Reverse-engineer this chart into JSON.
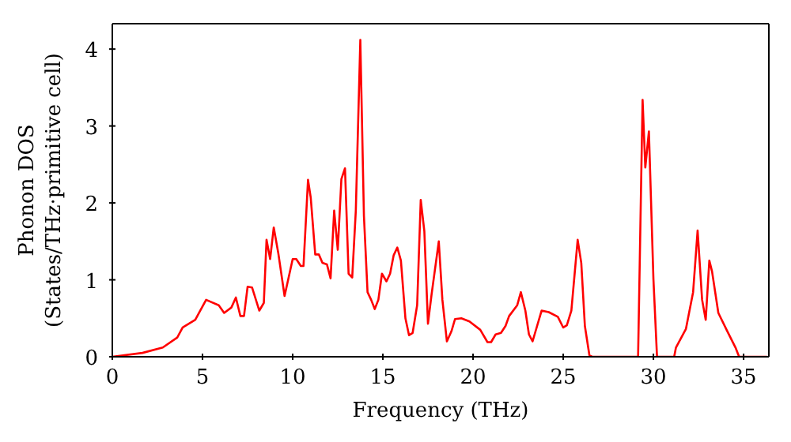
{
  "chart_data": {
    "type": "line",
    "xlabel": "Frequency (THz)",
    "ylabel": "Phonon DOS\n(States/THz·primitive cell)",
    "xlim": [
      0,
      36.4
    ],
    "ylim": [
      0,
      4.33
    ],
    "xticks": [
      0,
      5,
      10,
      15,
      20,
      25,
      30,
      35
    ],
    "yticks": [
      0,
      1,
      2,
      3,
      4
    ],
    "marker": "none",
    "line_style": "solid",
    "series": [
      {
        "color": "#ff0000",
        "x": [
          0,
          1.67,
          2.8,
          3.6,
          3.9,
          4.6,
          5.2,
          5.9,
          6.2,
          6.6,
          6.85,
          7.1,
          7.3,
          7.5,
          7.75,
          8.15,
          8.4,
          8.55,
          8.75,
          8.95,
          9.2,
          9.55,
          10.0,
          10.2,
          10.45,
          10.6,
          10.85,
          11.0,
          11.25,
          11.45,
          11.65,
          11.9,
          12.1,
          12.3,
          12.5,
          12.7,
          12.9,
          13.1,
          13.3,
          13.5,
          13.75,
          13.95,
          14.15,
          14.35,
          14.55,
          14.75,
          14.95,
          15.2,
          15.4,
          15.6,
          15.8,
          16.0,
          16.25,
          16.45,
          16.65,
          16.9,
          17.1,
          17.3,
          17.5,
          17.7,
          18.1,
          18.3,
          18.55,
          18.8,
          19.0,
          19.35,
          19.8,
          20.4,
          20.8,
          21.0,
          21.25,
          21.55,
          21.8,
          22.0,
          22.45,
          22.65,
          22.9,
          23.1,
          23.3,
          23.8,
          24.2,
          24.7,
          25.0,
          25.2,
          25.45,
          25.8,
          26.0,
          26.2,
          26.45,
          26.6,
          29.15,
          29.4,
          29.55,
          29.75,
          30.0,
          30.2,
          31.15,
          31.25,
          31.8,
          32.2,
          32.45,
          32.7,
          32.9,
          33.1,
          33.25,
          33.6,
          34.1,
          34.55,
          34.75,
          36.3
        ],
        "values": [
          0,
          0.05,
          0.12,
          0.25,
          0.38,
          0.48,
          0.74,
          0.67,
          0.57,
          0.64,
          0.77,
          0.53,
          0.53,
          0.91,
          0.9,
          0.6,
          0.7,
          1.52,
          1.27,
          1.68,
          1.35,
          0.79,
          1.27,
          1.27,
          1.18,
          1.18,
          2.3,
          2.07,
          1.33,
          1.33,
          1.22,
          1.2,
          1.02,
          1.9,
          1.39,
          2.31,
          2.45,
          1.08,
          1.03,
          1.9,
          4.12,
          1.83,
          0.84,
          0.74,
          0.62,
          0.74,
          1.08,
          0.98,
          1.08,
          1.32,
          1.42,
          1.25,
          0.5,
          0.28,
          0.31,
          0.67,
          2.04,
          1.63,
          0.43,
          0.81,
          1.5,
          0.74,
          0.2,
          0.33,
          0.49,
          0.5,
          0.46,
          0.35,
          0.19,
          0.19,
          0.29,
          0.31,
          0.4,
          0.53,
          0.67,
          0.84,
          0.6,
          0.29,
          0.2,
          0.6,
          0.58,
          0.52,
          0.38,
          0.41,
          0.6,
          1.52,
          1.22,
          0.4,
          0.02,
          0,
          0,
          3.34,
          2.46,
          2.93,
          1.01,
          0,
          0,
          0.12,
          0.36,
          0.84,
          1.64,
          0.74,
          0.48,
          1.25,
          1.11,
          0.57,
          0.33,
          0.12,
          0,
          0
        ]
      }
    ]
  }
}
